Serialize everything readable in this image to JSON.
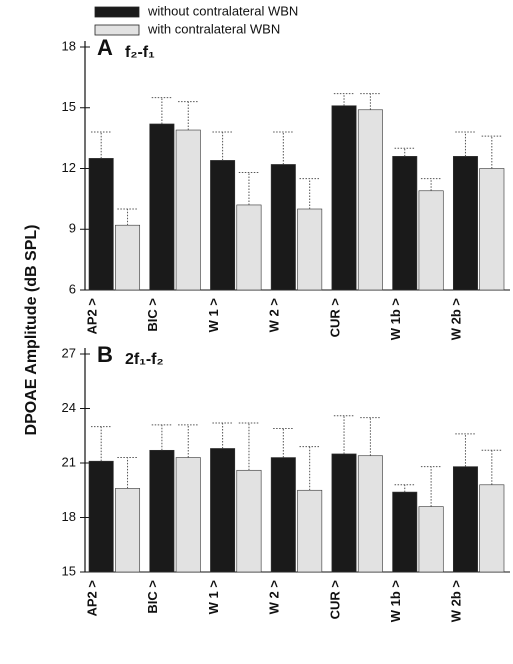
{
  "chart_data": [
    {
      "type": "bar",
      "label": "A",
      "title": "f₂-f₁",
      "ylabel": "DPOAE Amplitude (dB SPL)",
      "categories": [
        "AP2 >",
        "BIC >",
        "W 1 >",
        "W 2 >",
        "CUR >",
        "W 1b >",
        "W 2b >"
      ],
      "series": [
        {
          "name": "without contralateral WBN",
          "color": "#1a1a1a",
          "values": [
            12.5,
            14.2,
            12.4,
            12.2,
            15.1,
            12.6,
            12.6
          ],
          "errors": [
            1.3,
            1.3,
            1.4,
            1.6,
            0.6,
            0.4,
            1.2
          ]
        },
        {
          "name": "with contralateral WBN",
          "color": "#e2e2e2",
          "values": [
            9.2,
            13.9,
            10.2,
            10.0,
            14.9,
            10.9,
            12.0
          ],
          "errors": [
            0.8,
            1.4,
            1.6,
            1.5,
            0.8,
            0.6,
            1.6
          ]
        }
      ],
      "ylim": [
        6,
        18
      ],
      "yticks": [
        6,
        9,
        12,
        15,
        18
      ]
    },
    {
      "type": "bar",
      "label": "B",
      "title": "2f₁-f₂",
      "categories": [
        "AP2 >",
        "BIC >",
        "W 1 >",
        "W 2 >",
        "CUR >",
        "W 1b >",
        "W 2b >"
      ],
      "series": [
        {
          "name": "without contralateral WBN",
          "color": "#1a1a1a",
          "values": [
            21.1,
            21.7,
            21.8,
            21.3,
            21.5,
            19.4,
            20.8
          ],
          "errors": [
            1.9,
            1.4,
            1.4,
            1.6,
            2.1,
            0.4,
            1.8
          ]
        },
        {
          "name": "with contralateral WBN",
          "color": "#e2e2e2",
          "values": [
            19.6,
            21.3,
            20.6,
            19.5,
            21.4,
            18.6,
            19.8
          ],
          "errors": [
            1.7,
            1.8,
            2.6,
            2.4,
            2.1,
            2.2,
            1.9
          ]
        }
      ],
      "ylim": [
        15,
        27
      ],
      "yticks": [
        15,
        18,
        21,
        24,
        27
      ]
    }
  ]
}
